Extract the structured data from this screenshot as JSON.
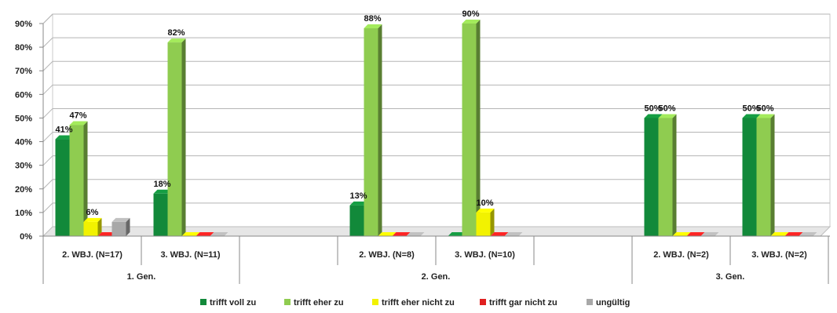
{
  "chart_data": {
    "type": "bar",
    "ylim": [
      0,
      90
    ],
    "ytick_labels": [
      "0%",
      "10%",
      "20%",
      "30%",
      "40%",
      "50%",
      "60%",
      "70%",
      "80%",
      "90%"
    ],
    "categories": [
      "2. WBJ. (N=17)",
      "3. WBJ. (N=11)",
      "",
      "2. WBJ. (N=8)",
      "3. WBJ. (N=10)",
      "",
      "2. WBJ. (N=2)",
      "3. WBJ. (N=2)"
    ],
    "groups": [
      {
        "label": "1. Gen.",
        "start": 0,
        "end": 2
      },
      {
        "label": "2. Gen.",
        "start": 2,
        "end": 6
      },
      {
        "label": "3. Gen.",
        "start": 6,
        "end": 8
      }
    ],
    "series": [
      {
        "name": "trifft voll zu",
        "values": [
          41,
          18,
          null,
          13,
          0,
          null,
          50,
          50
        ],
        "labels": [
          "41%",
          "18%",
          "",
          "13%",
          "",
          "",
          "50%",
          "50%"
        ]
      },
      {
        "name": "trifft eher zu",
        "values": [
          47,
          82,
          null,
          88,
          90,
          null,
          50,
          50
        ],
        "labels": [
          "47%",
          "82%",
          "",
          "88%",
          "90%",
          "",
          "50%",
          "50%"
        ]
      },
      {
        "name": "trifft eher nicht zu",
        "values": [
          6,
          0,
          null,
          0,
          10,
          null,
          0,
          0
        ],
        "labels": [
          "6%",
          "",
          "",
          "",
          "10%",
          "",
          "",
          ""
        ]
      },
      {
        "name": "trifft gar nicht zu",
        "values": [
          0,
          0,
          null,
          0,
          0,
          null,
          0,
          0
        ],
        "labels": [
          "",
          "",
          "",
          "",
          "",
          "",
          "",
          ""
        ]
      },
      {
        "name": "ungültig",
        "values": [
          6,
          0,
          null,
          0,
          0,
          null,
          0,
          0
        ],
        "labels": [
          "",
          "",
          "",
          "",
          "",
          "",
          "",
          ""
        ]
      }
    ],
    "legend_position": "bottom",
    "grid": true
  },
  "colors": {
    "trifft voll zu": "#12893a",
    "trifft eher zu": "#8fcc50",
    "trifft eher nicht zu": "#f2f200",
    "trifft gar nicht zu": "#e02020",
    "ungültig": "#a8a8a8"
  }
}
